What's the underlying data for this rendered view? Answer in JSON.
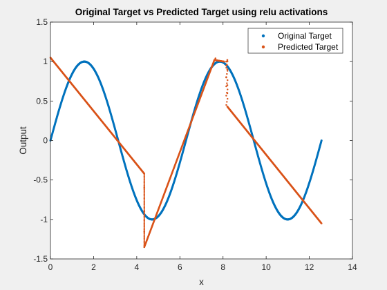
{
  "chart_data": {
    "type": "scatter",
    "title": "Original Target vs Predicted Target using relu activations",
    "xlabel": "x",
    "ylabel": "Output",
    "xlim": [
      0,
      14
    ],
    "ylim": [
      -1.5,
      1.5
    ],
    "x_ticks": [
      "0",
      "2",
      "4",
      "6",
      "8",
      "10",
      "12",
      "14"
    ],
    "y_ticks": [
      "1.5",
      "1",
      "0.5",
      "0",
      "-0.5",
      "-1",
      "-1.5"
    ],
    "grid": false,
    "legend_position": "top-right",
    "series": [
      {
        "name": "Original Target",
        "color": "#0072BD",
        "function": "sin(x)",
        "x_range": [
          0,
          12.566
        ],
        "points": [
          [
            0,
            0
          ],
          [
            0.5,
            0.479
          ],
          [
            1,
            0.841
          ],
          [
            1.571,
            1
          ],
          [
            2,
            0.909
          ],
          [
            2.5,
            0.598
          ],
          [
            3,
            0.141
          ],
          [
            3.142,
            0
          ],
          [
            3.5,
            -0.351
          ],
          [
            4,
            -0.757
          ],
          [
            4.5,
            -0.978
          ],
          [
            4.712,
            -1
          ],
          [
            5,
            -0.959
          ],
          [
            5.5,
            -0.706
          ],
          [
            6,
            -0.279
          ],
          [
            6.283,
            0
          ],
          [
            6.5,
            0.215
          ],
          [
            7,
            0.657
          ],
          [
            7.5,
            0.938
          ],
          [
            7.854,
            1
          ],
          [
            8,
            0.989
          ],
          [
            8.5,
            0.798
          ],
          [
            9,
            0.412
          ],
          [
            9.425,
            0
          ],
          [
            9.5,
            -0.075
          ],
          [
            10,
            -0.544
          ],
          [
            10.5,
            -0.88
          ],
          [
            10.996,
            -1
          ],
          [
            11.5,
            -0.875
          ],
          [
            12,
            -0.537
          ],
          [
            12.566,
            0
          ]
        ]
      },
      {
        "name": "Predicted Target",
        "color": "#D95319",
        "segments": [
          [
            [
              0,
              1.05
            ],
            [
              4.35,
              -0.42
            ]
          ],
          [
            [
              4.35,
              -1.35
            ],
            [
              7.6,
              1.02
            ],
            [
              8.05,
              1.0
            ]
          ],
          [
            [
              8.2,
              0.43
            ],
            [
              12.566,
              -1.05
            ]
          ]
        ],
        "outliers": [
          [
            4.35,
            -0.6
          ],
          [
            4.35,
            -0.9
          ],
          [
            4.35,
            -1.15
          ],
          [
            7.65,
            1.04
          ],
          [
            8.15,
            0.95
          ],
          [
            8.15,
            0.8
          ],
          [
            8.2,
            0.6
          ],
          [
            8.2,
            0.7
          ],
          [
            8.2,
            0.9
          ],
          [
            8.2,
            1.02
          ],
          [
            8.15,
            1.0
          ]
        ]
      }
    ]
  }
}
